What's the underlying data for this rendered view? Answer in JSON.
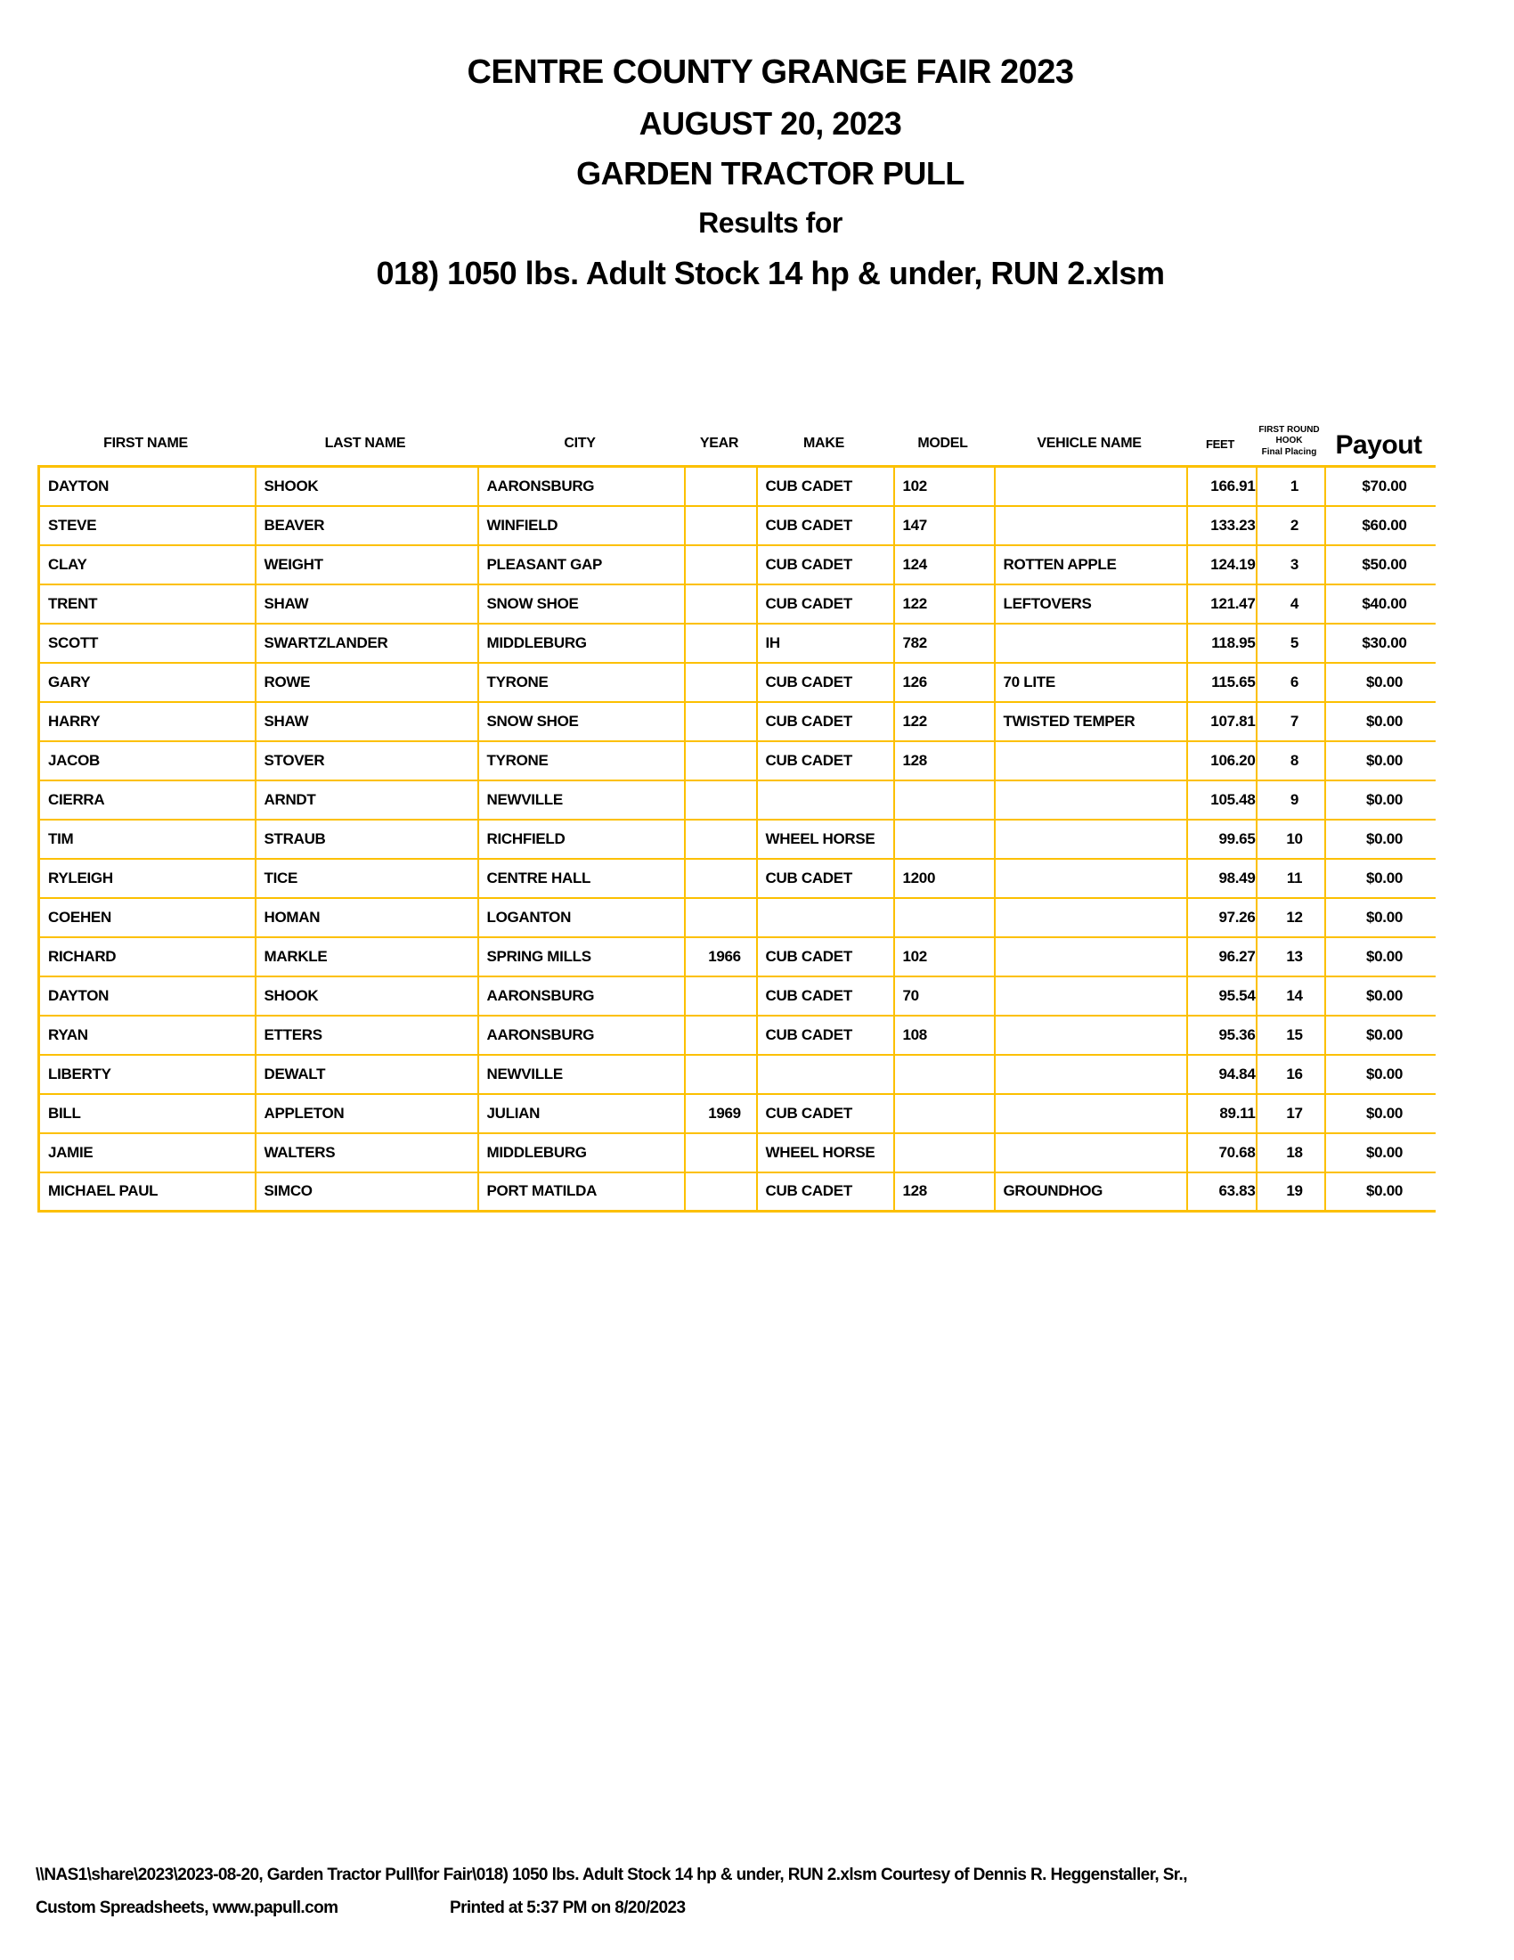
{
  "titles": {
    "line1": "CENTRE COUNTY GRANGE FAIR 2023",
    "line2": "AUGUST 20, 2023",
    "line3": "GARDEN TRACTOR PULL",
    "line4": "Results for",
    "line5": "018) 1050 lbs. Adult Stock 14 hp & under, RUN 2.xlsm"
  },
  "colors": {
    "table_border": "#FCC000",
    "text": "#000000",
    "page_background": "#FFFFFF"
  },
  "table": {
    "header": {
      "first_name": "FIRST NAME",
      "last_name": "LAST NAME",
      "city": "CITY",
      "year": "YEAR",
      "make": "MAKE",
      "model": "MODEL",
      "vehicle_name": "VEHICLE NAME",
      "feet": "FEET",
      "hook_line1": "FIRST ROUND",
      "hook_line2": "HOOK",
      "hook_line3": "Final Placing",
      "payout": "Payout"
    },
    "rows": [
      {
        "first_name": "DAYTON",
        "last_name": "SHOOK",
        "city": "AARONSBURG",
        "year": "",
        "make": "CUB CADET",
        "model": "102",
        "vehicle_name": "",
        "feet": "166.91",
        "placing": "1",
        "payout": "$70.00"
      },
      {
        "first_name": "STEVE",
        "last_name": "BEAVER",
        "city": "WINFIELD",
        "year": "",
        "make": "CUB CADET",
        "model": "147",
        "vehicle_name": "",
        "feet": "133.23",
        "placing": "2",
        "payout": "$60.00"
      },
      {
        "first_name": "CLAY",
        "last_name": "WEIGHT",
        "city": "PLEASANT GAP",
        "year": "",
        "make": "CUB CADET",
        "model": "124",
        "vehicle_name": "ROTTEN APPLE",
        "feet": "124.19",
        "placing": "3",
        "payout": "$50.00"
      },
      {
        "first_name": "TRENT",
        "last_name": "SHAW",
        "city": "SNOW SHOE",
        "year": "",
        "make": "CUB CADET",
        "model": "122",
        "vehicle_name": "LEFTOVERS",
        "feet": "121.47",
        "placing": "4",
        "payout": "$40.00"
      },
      {
        "first_name": "SCOTT",
        "last_name": "SWARTZLANDER",
        "city": "MIDDLEBURG",
        "year": "",
        "make": "IH",
        "model": "782",
        "vehicle_name": "",
        "feet": "118.95",
        "placing": "5",
        "payout": "$30.00"
      },
      {
        "first_name": "GARY",
        "last_name": "ROWE",
        "city": "TYRONE",
        "year": "",
        "make": "CUB CADET",
        "model": "126",
        "vehicle_name": "70 LITE",
        "feet": "115.65",
        "placing": "6",
        "payout": "$0.00"
      },
      {
        "first_name": "HARRY",
        "last_name": "SHAW",
        "city": "SNOW SHOE",
        "year": "",
        "make": "CUB CADET",
        "model": "122",
        "vehicle_name": "TWISTED TEMPER",
        "feet": "107.81",
        "placing": "7",
        "payout": "$0.00"
      },
      {
        "first_name": "JACOB",
        "last_name": "STOVER",
        "city": "TYRONE",
        "year": "",
        "make": "CUB CADET",
        "model": "128",
        "vehicle_name": "",
        "feet": "106.20",
        "placing": "8",
        "payout": "$0.00"
      },
      {
        "first_name": "CIERRA",
        "last_name": "ARNDT",
        "city": "NEWVILLE",
        "year": "",
        "make": "",
        "model": "",
        "vehicle_name": "",
        "feet": "105.48",
        "placing": "9",
        "payout": "$0.00"
      },
      {
        "first_name": "TIM",
        "last_name": "STRAUB",
        "city": "RICHFIELD",
        "year": "",
        "make": "WHEEL HORSE",
        "model": "",
        "vehicle_name": "",
        "feet": "99.65",
        "placing": "10",
        "payout": "$0.00"
      },
      {
        "first_name": "RYLEIGH",
        "last_name": "TICE",
        "city": "CENTRE HALL",
        "year": "",
        "make": "CUB CADET",
        "model": "1200",
        "vehicle_name": "",
        "feet": "98.49",
        "placing": "11",
        "payout": "$0.00"
      },
      {
        "first_name": "COEHEN",
        "last_name": "HOMAN",
        "city": "LOGANTON",
        "year": "",
        "make": "",
        "model": "",
        "vehicle_name": "",
        "feet": "97.26",
        "placing": "12",
        "payout": "$0.00"
      },
      {
        "first_name": "RICHARD",
        "last_name": "MARKLE",
        "city": "SPRING MILLS",
        "year": "1966",
        "make": "CUB CADET",
        "model": "102",
        "vehicle_name": "",
        "feet": "96.27",
        "placing": "13",
        "payout": "$0.00"
      },
      {
        "first_name": "DAYTON",
        "last_name": "SHOOK",
        "city": "AARONSBURG",
        "year": "",
        "make": "CUB CADET",
        "model": "70",
        "vehicle_name": "",
        "feet": "95.54",
        "placing": "14",
        "payout": "$0.00"
      },
      {
        "first_name": "RYAN",
        "last_name": "ETTERS",
        "city": "AARONSBURG",
        "year": "",
        "make": "CUB CADET",
        "model": "108",
        "vehicle_name": "",
        "feet": "95.36",
        "placing": "15",
        "payout": "$0.00"
      },
      {
        "first_name": "LIBERTY",
        "last_name": "DEWALT",
        "city": "NEWVILLE",
        "year": "",
        "make": "",
        "model": "",
        "vehicle_name": "",
        "feet": "94.84",
        "placing": "16",
        "payout": "$0.00"
      },
      {
        "first_name": "BILL",
        "last_name": "APPLETON",
        "city": "JULIAN",
        "year": "1969",
        "make": "CUB CADET",
        "model": "",
        "vehicle_name": "",
        "feet": "89.11",
        "placing": "17",
        "payout": "$0.00"
      },
      {
        "first_name": "JAMIE",
        "last_name": "WALTERS",
        "city": "MIDDLEBURG",
        "year": "",
        "make": "WHEEL HORSE",
        "model": "",
        "vehicle_name": "",
        "feet": "70.68",
        "placing": "18",
        "payout": "$0.00"
      },
      {
        "first_name": "MICHAEL PAUL",
        "last_name": "SIMCO",
        "city": "PORT MATILDA",
        "year": "",
        "make": "CUB CADET",
        "model": "128",
        "vehicle_name": "GROUNDHOG",
        "feet": "63.83",
        "placing": "19",
        "payout": "$0.00"
      }
    ]
  },
  "footer": {
    "line1": "\\\\NAS1\\share\\2023\\2023-08-20, Garden Tractor Pull\\for Fair\\018) 1050 lbs. Adult Stock 14 hp & under, RUN 2.xlsm  Courtesy of Dennis R. Heggenstaller, Sr.,",
    "line2_left": "Custom Spreadsheets, www.papull.com",
    "line2_right": "Printed at 5:37 PM on 8/20/2023"
  }
}
